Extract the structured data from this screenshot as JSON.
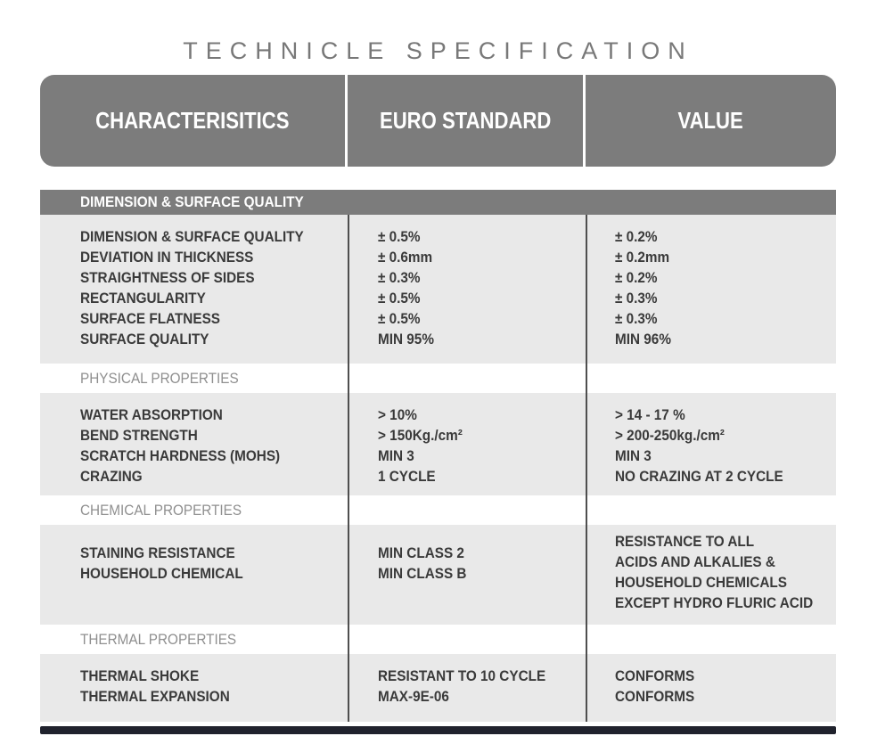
{
  "title": "TECHNICLE SPECIFICATION",
  "colors": {
    "header_gray": "#7c7c7c",
    "row_gray": "#e9e9e9",
    "divider": "#4f4f4f",
    "title_gray": "#787878",
    "section_label_gray": "#8f8f8f",
    "text": "#3a3a3a",
    "footer_bar": "#20222d"
  },
  "table": {
    "columns": [
      "CHARACTERISITICS",
      "EURO STANDARD",
      "VALUE"
    ],
    "sections": [
      {
        "label": "DIMENSION & SURFACE QUALITY",
        "characteristics": [
          "DIMENSION & SURFACE QUALITY",
          "DEVIATION IN THICKNESS",
          "STRAIGHTNESS OF SIDES",
          "RECTANGULARITY",
          "SURFACE FLATNESS",
          "SURFACE QUALITY"
        ],
        "euro_standard": [
          "± 0.5%",
          "± 0.6mm",
          "± 0.3%",
          "± 0.5%",
          "± 0.5%",
          "MIN 95%"
        ],
        "value": [
          "± 0.2%",
          "± 0.2mm",
          "± 0.2%",
          "± 0.3%",
          "± 0.3%",
          "MIN 96%"
        ]
      },
      {
        "label": "PHYSICAL PROPERTIES",
        "characteristics": [
          "WATER ABSORPTION",
          "BEND STRENGTH",
          "SCRATCH HARDNESS (MOHS)",
          "CRAZING"
        ],
        "euro_standard": [
          "> 10%",
          "> 150Kg./cm²",
          "MIN 3",
          "1 CYCLE"
        ],
        "value": [
          "> 14 - 17 %",
          "> 200-250kg./cm²",
          "MIN 3",
          "NO CRAZING AT 2 CYCLE"
        ]
      },
      {
        "label": "CHEMICAL PROPERTIES",
        "characteristics": [
          "STAINING RESISTANCE",
          "HOUSEHOLD CHEMICAL"
        ],
        "euro_standard": [
          "MIN CLASS 2",
          "MIN CLASS B"
        ],
        "value": [
          "RESISTANCE TO ALL",
          "ACIDS AND ALKALIES &",
          "HOUSEHOLD CHEMICALS",
          "EXCEPT HYDRO FLURIC ACID"
        ]
      },
      {
        "label": "THERMAL PROPERTIES",
        "characteristics": [
          "THERMAL SHOKE",
          "THERMAL EXPANSION"
        ],
        "euro_standard": [
          "RESISTANT TO 10 CYCLE",
          "MAX-9E-06"
        ],
        "value": [
          "CONFORMS",
          "CONFORMS"
        ]
      }
    ]
  }
}
